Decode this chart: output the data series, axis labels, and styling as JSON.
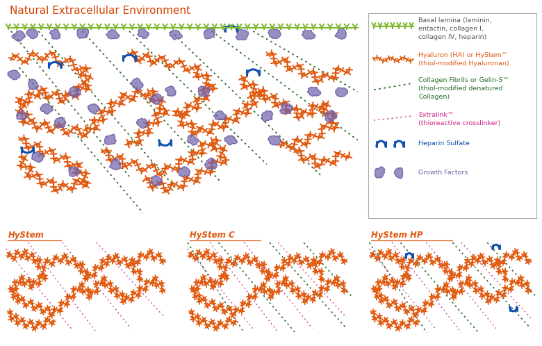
{
  "title": "Natural Extracellular Environment",
  "title_color": "#d44000",
  "title_fontsize": 11,
  "bg_color": "#ffffff",
  "ha_color": "#e05a10",
  "collagen_color": "#2a6e2a",
  "extralink_color": "#cc2288",
  "heparin_color": "#1050b0",
  "growth_color": "#7060a8",
  "basal_color": "#80b830",
  "legend_text_color": "#333333",
  "legend_ha_label": "Hyaluron (HA) or HyStem™\n(thiol-modified Hyaluronan)",
  "legend_collagen_label": "Collagen Fibrils or Gelin-S™\n(thiol-modified denatured\nCollagen)",
  "legend_extralink_label": "Extralink™\n(thioreactive crosslinker)",
  "legend_heparin_label": "Heparin Sulfate",
  "legend_growth_label": "Growth Factors",
  "legend_basal_label": "Basal lamina (laminin,\nentactin, collagen I,\ncollagen IV, heparin)"
}
